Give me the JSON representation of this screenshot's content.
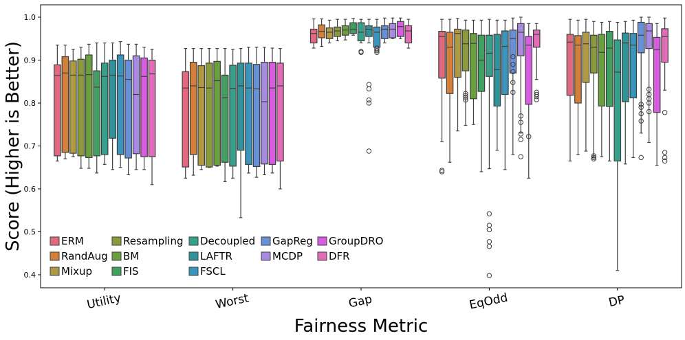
{
  "chart_data": {
    "type": "boxplot",
    "title": "",
    "xlabel": "Fairness Metric",
    "ylabel": "Score (Higher is Better)",
    "ylim": [
      0.37,
      1.03
    ],
    "yticks": [
      "0.4",
      "0.5",
      "0.6",
      "0.7",
      "0.8",
      "0.9",
      "1.0"
    ],
    "categories": [
      "Utility",
      "Worst",
      "Gap",
      "EqOdd",
      "DP"
    ],
    "legend_position": "lower-left",
    "series": [
      {
        "name": "ERM",
        "color": "#e0697f",
        "boxes": [
          [
            0.665,
            0.677,
            0.864,
            0.889,
            0.935
          ],
          [
            0.625,
            0.651,
            0.835,
            0.873,
            0.927
          ],
          [
            0.928,
            0.94,
            0.962,
            0.972,
            0.996
          ],
          [
            0.71,
            0.858,
            0.955,
            0.967,
            0.995
          ],
          [
            0.665,
            0.818,
            0.942,
            0.96,
            0.995
          ]
        ],
        "outliers": [
          [],
          [],
          [],
          [
            0.64,
            0.643
          ],
          []
        ]
      },
      {
        "name": "RandAug",
        "color": "#d4803a",
        "boxes": [
          [
            0.67,
            0.685,
            0.87,
            0.908,
            0.935
          ],
          [
            0.632,
            0.68,
            0.84,
            0.895,
            0.927
          ],
          [
            0.932,
            0.952,
            0.967,
            0.982,
            0.996
          ],
          [
            0.662,
            0.822,
            0.93,
            0.965,
            0.995
          ],
          [
            0.68,
            0.8,
            0.935,
            0.957,
            0.993
          ]
        ],
        "outliers": [
          [],
          [],
          [],
          [],
          []
        ]
      },
      {
        "name": "Mixup",
        "color": "#af9a44",
        "boxes": [
          [
            0.675,
            0.683,
            0.865,
            0.898,
            0.925
          ],
          [
            0.645,
            0.655,
            0.836,
            0.887,
            0.927
          ],
          [
            0.94,
            0.95,
            0.965,
            0.975,
            0.993
          ],
          [
            0.735,
            0.86,
            0.962,
            0.972,
            0.997
          ],
          [
            0.688,
            0.848,
            0.938,
            0.965,
            0.995
          ]
        ],
        "outliers": [
          [],
          [],
          [],
          [],
          []
        ]
      },
      {
        "name": "Resampling",
        "color": "#8a9a3c",
        "boxes": [
          [
            0.648,
            0.677,
            0.865,
            0.902,
            0.93
          ],
          [
            0.65,
            0.651,
            0.835,
            0.893,
            0.927
          ],
          [
            0.945,
            0.955,
            0.968,
            0.977,
            0.995
          ],
          [
            0.748,
            0.875,
            0.938,
            0.97,
            0.993
          ],
          [
            0.672,
            0.87,
            0.93,
            0.958,
            0.99
          ]
        ],
        "outliers": [
          [],
          [],
          [],
          [
            0.807,
            0.812,
            0.817,
            0.822
          ],
          [
            0.67,
            0.673,
            0.677
          ]
        ]
      },
      {
        "name": "BM",
        "color": "#6aa03e",
        "boxes": [
          [
            0.648,
            0.673,
            0.866,
            0.912,
            0.937
          ],
          [
            0.653,
            0.655,
            0.852,
            0.897,
            0.927
          ],
          [
            0.947,
            0.958,
            0.97,
            0.98,
            0.995
          ],
          [
            0.75,
            0.81,
            0.939,
            0.962,
            0.993
          ],
          [
            0.675,
            0.793,
            0.918,
            0.96,
            0.988
          ]
        ],
        "outliers": [
          [],
          [],
          [],
          [],
          []
        ]
      },
      {
        "name": "FIS",
        "color": "#3fa060",
        "boxes": [
          [
            0.637,
            0.677,
            0.837,
            0.875,
            0.94
          ],
          [
            0.617,
            0.662,
            0.812,
            0.865,
            0.927
          ],
          [
            0.958,
            0.962,
            0.972,
            0.987,
            0.997
          ],
          [
            0.64,
            0.827,
            0.9,
            0.958,
            0.993
          ],
          [
            0.665,
            0.792,
            0.928,
            0.967,
            0.99
          ]
        ],
        "outliers": [
          [],
          [],
          [],
          [],
          []
        ]
      },
      {
        "name": "Decoupled",
        "color": "#37a08a",
        "boxes": [
          [
            0.657,
            0.68,
            0.862,
            0.893,
            0.94
          ],
          [
            0.625,
            0.653,
            0.834,
            0.888,
            0.925
          ],
          [
            0.94,
            0.945,
            0.965,
            0.987,
            0.995
          ],
          [
            0.647,
            0.862,
            0.916,
            0.958,
            0.995
          ],
          [
            0.41,
            0.665,
            0.872,
            0.947,
            0.988
          ]
        ],
        "outliers": [
          [],
          [],
          [
            0.918,
            0.92
          ],
          [
            0.398,
            0.466,
            0.477,
            0.505,
            0.515,
            0.542
          ],
          []
        ]
      },
      {
        "name": "LAFTR",
        "color": "#30939a",
        "boxes": [
          [
            0.645,
            0.718,
            0.865,
            0.9,
            0.94
          ],
          [
            0.533,
            0.69,
            0.84,
            0.893,
            0.927
          ],
          [
            0.94,
            0.955,
            0.972,
            0.98,
            0.995
          ],
          [
            0.69,
            0.793,
            0.878,
            0.96,
            0.993
          ],
          [
            0.658,
            0.803,
            0.94,
            0.963,
            0.99
          ]
        ],
        "outliers": [
          [],
          [],
          [
            0.688,
            0.8,
            0.807,
            0.833,
            0.843
          ],
          [],
          []
        ]
      },
      {
        "name": "FSCL",
        "color": "#3b94bb",
        "boxes": [
          [
            0.65,
            0.68,
            0.863,
            0.912,
            0.943
          ],
          [
            0.637,
            0.657,
            0.835,
            0.893,
            0.93
          ],
          [
            0.935,
            0.93,
            0.965,
            0.977,
            0.995
          ],
          [
            0.645,
            0.82,
            0.932,
            0.968,
            0.993
          ],
          [
            0.673,
            0.812,
            0.935,
            0.962,
            0.993
          ]
        ],
        "outliers": [
          [],
          [],
          [
            0.918,
            0.922,
            0.925,
            0.928
          ],
          [],
          []
        ]
      },
      {
        "name": "GapReg",
        "color": "#6790d8",
        "boxes": [
          [
            0.633,
            0.672,
            0.855,
            0.9,
            0.937
          ],
          [
            0.627,
            0.652,
            0.833,
            0.89,
            0.93
          ],
          [
            0.94,
            0.95,
            0.972,
            0.98,
            0.998
          ],
          [
            0.68,
            0.87,
            0.95,
            0.97,
            0.998
          ],
          [
            0.73,
            0.917,
            0.958,
            0.988,
            1.0
          ]
        ],
        "outliers": [
          [],
          [],
          [],
          [
            0.825,
            0.848,
            0.873,
            0.89,
            0.908
          ],
          [
            0.673,
            0.758,
            0.775,
            0.79,
            0.797
          ]
        ]
      },
      {
        "name": "MCDP",
        "color": "#a88ae0",
        "boxes": [
          [
            0.645,
            0.682,
            0.82,
            0.91,
            0.937
          ],
          [
            0.633,
            0.658,
            0.803,
            0.895,
            0.93
          ],
          [
            0.95,
            0.952,
            0.972,
            0.985,
            0.998
          ],
          [
            0.73,
            0.91,
            0.965,
            0.985,
            1.0
          ],
          [
            0.708,
            0.927,
            0.968,
            0.985,
            1.0
          ]
        ],
        "outliers": [
          [],
          [],
          [],
          [
            0.675,
            0.715,
            0.728,
            0.755,
            0.77
          ],
          [
            0.78,
            0.8,
            0.81,
            0.82,
            0.832
          ]
        ]
      },
      {
        "name": "GroupDRO",
        "color": "#d85ce0",
        "boxes": [
          [
            0.645,
            0.675,
            0.862,
            0.905,
            0.93
          ],
          [
            0.637,
            0.657,
            0.835,
            0.895,
            0.928
          ],
          [
            0.95,
            0.955,
            0.978,
            0.99,
            0.998
          ],
          [
            0.625,
            0.797,
            0.935,
            0.955,
            0.985
          ],
          [
            0.655,
            0.778,
            0.925,
            0.953,
            0.985
          ]
        ],
        "outliers": [
          [],
          [],
          [],
          [
            0.722
          ],
          []
        ]
      },
      {
        "name": "DFR",
        "color": "#e26cb8",
        "boxes": [
          [
            0.61,
            0.675,
            0.868,
            0.9,
            0.925
          ],
          [
            0.6,
            0.665,
            0.84,
            0.893,
            0.927
          ],
          [
            0.928,
            0.94,
            0.968,
            0.98,
            0.995
          ],
          [
            0.855,
            0.93,
            0.96,
            0.97,
            0.985
          ],
          [
            0.83,
            0.895,
            0.955,
            0.973,
            0.998
          ]
        ],
        "outliers": [
          [],
          [],
          [],
          [
            0.808,
            0.815,
            0.82,
            0.825
          ],
          [
            0.665,
            0.673,
            0.685,
            0.778
          ]
        ]
      }
    ]
  }
}
